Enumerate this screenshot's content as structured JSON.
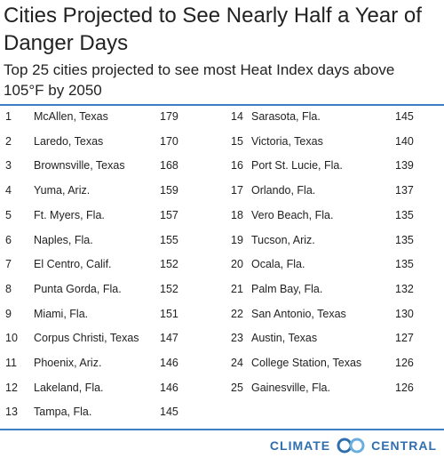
{
  "header": {
    "title": "Cities Projected to See Nearly Half a Year of Danger Days",
    "subtitle": "Top 25 cities projected to see most Heat Index days above 105°F by 2050"
  },
  "table": {
    "rows": [
      [
        1,
        "McAllen, Texas",
        179
      ],
      [
        2,
        "Laredo, Texas",
        170
      ],
      [
        3,
        "Brownsville, Texas",
        168
      ],
      [
        4,
        "Yuma, Ariz.",
        159
      ],
      [
        5,
        "Ft. Myers, Fla.",
        157
      ],
      [
        6,
        "Naples, Fla.",
        155
      ],
      [
        7,
        "El Centro, Calif.",
        152
      ],
      [
        8,
        "Punta Gorda, Fla.",
        152
      ],
      [
        9,
        "Miami, Fla.",
        151
      ],
      [
        10,
        "Corpus Christi, Texas",
        147
      ],
      [
        11,
        "Phoenix, Ariz.",
        146
      ],
      [
        12,
        "Lakeland, Fla.",
        146
      ],
      [
        13,
        "Tampa, Fla.",
        145
      ],
      [
        14,
        "Sarasota, Fla.",
        145
      ],
      [
        15,
        "Victoria, Texas",
        140
      ],
      [
        16,
        "Port St. Lucie, Fla.",
        139
      ],
      [
        17,
        "Orlando, Fla.",
        137
      ],
      [
        18,
        "Vero Beach, Fla.",
        135
      ],
      [
        19,
        "Tucson, Ariz.",
        135
      ],
      [
        20,
        "Ocala, Fla.",
        135
      ],
      [
        21,
        "Palm Bay, Fla.",
        132
      ],
      [
        22,
        "San Antonio, Texas",
        130
      ],
      [
        23,
        "Austin, Texas",
        127
      ],
      [
        24,
        "College Station, Texas",
        126
      ],
      [
        25,
        "Gainesville, Fla.",
        126
      ]
    ]
  },
  "footer": {
    "logo_left": "CLIMATE",
    "logo_right": "CENTRAL"
  }
}
